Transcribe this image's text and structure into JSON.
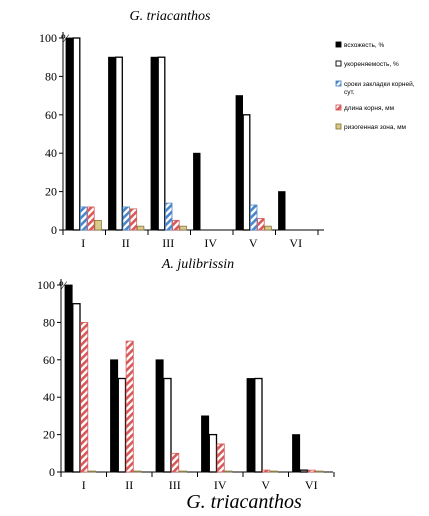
{
  "chart_data": [
    {
      "type": "bar",
      "title": "G. triacanthos",
      "ylabel": "%",
      "ylim": [
        0,
        100
      ],
      "yticks": [
        0,
        20,
        40,
        60,
        80,
        100
      ],
      "categories": [
        "I",
        "II",
        "III",
        "IV",
        "V",
        "VI"
      ],
      "legend_position": "right",
      "series": [
        {
          "name": "всхожесть, %",
          "color": "#000000",
          "pattern": "solid",
          "values": [
            100,
            90,
            90,
            40,
            70,
            20
          ]
        },
        {
          "name": "укореняемость, %",
          "color": "#ffffff",
          "pattern": "outline",
          "values": [
            100,
            90,
            90,
            0,
            60,
            0
          ]
        },
        {
          "name": "сроки закладки корней, сут.",
          "color": "#4a86c8",
          "pattern": "hatch",
          "values": [
            12,
            12,
            14,
            0,
            13,
            0
          ]
        },
        {
          "name": "длина корня, мм",
          "color": "#d65a5a",
          "pattern": "hatch",
          "values": [
            12,
            11,
            5,
            0,
            6,
            0
          ]
        },
        {
          "name": "ризогенная зона, мм",
          "color": "#d9c98a",
          "pattern": "light",
          "values": [
            5,
            2,
            2,
            0,
            2,
            0
          ]
        }
      ]
    },
    {
      "type": "bar",
      "title": "A. julibrissin",
      "ylabel": "%",
      "ylim": [
        0,
        100
      ],
      "yticks": [
        0,
        20,
        40,
        60,
        80,
        100
      ],
      "categories": [
        "I",
        "II",
        "III",
        "IV",
        "V",
        "VI"
      ],
      "series": [
        {
          "color": "#000000",
          "pattern": "solid",
          "values": [
            100,
            60,
            60,
            30,
            50,
            20
          ]
        },
        {
          "color": "#ffffff",
          "pattern": "outline",
          "values": [
            90,
            50,
            50,
            20,
            50,
            1
          ]
        },
        {
          "color": "#d65a5a",
          "pattern": "hatch",
          "values": [
            80,
            70,
            10,
            15,
            1,
            1
          ]
        },
        {
          "color": "#9aa9c4",
          "pattern": "light",
          "values": [
            0.5,
            0.5,
            0.5,
            0.5,
            0.5,
            0.5
          ]
        }
      ]
    }
  ],
  "caption": "G. triacanthos"
}
